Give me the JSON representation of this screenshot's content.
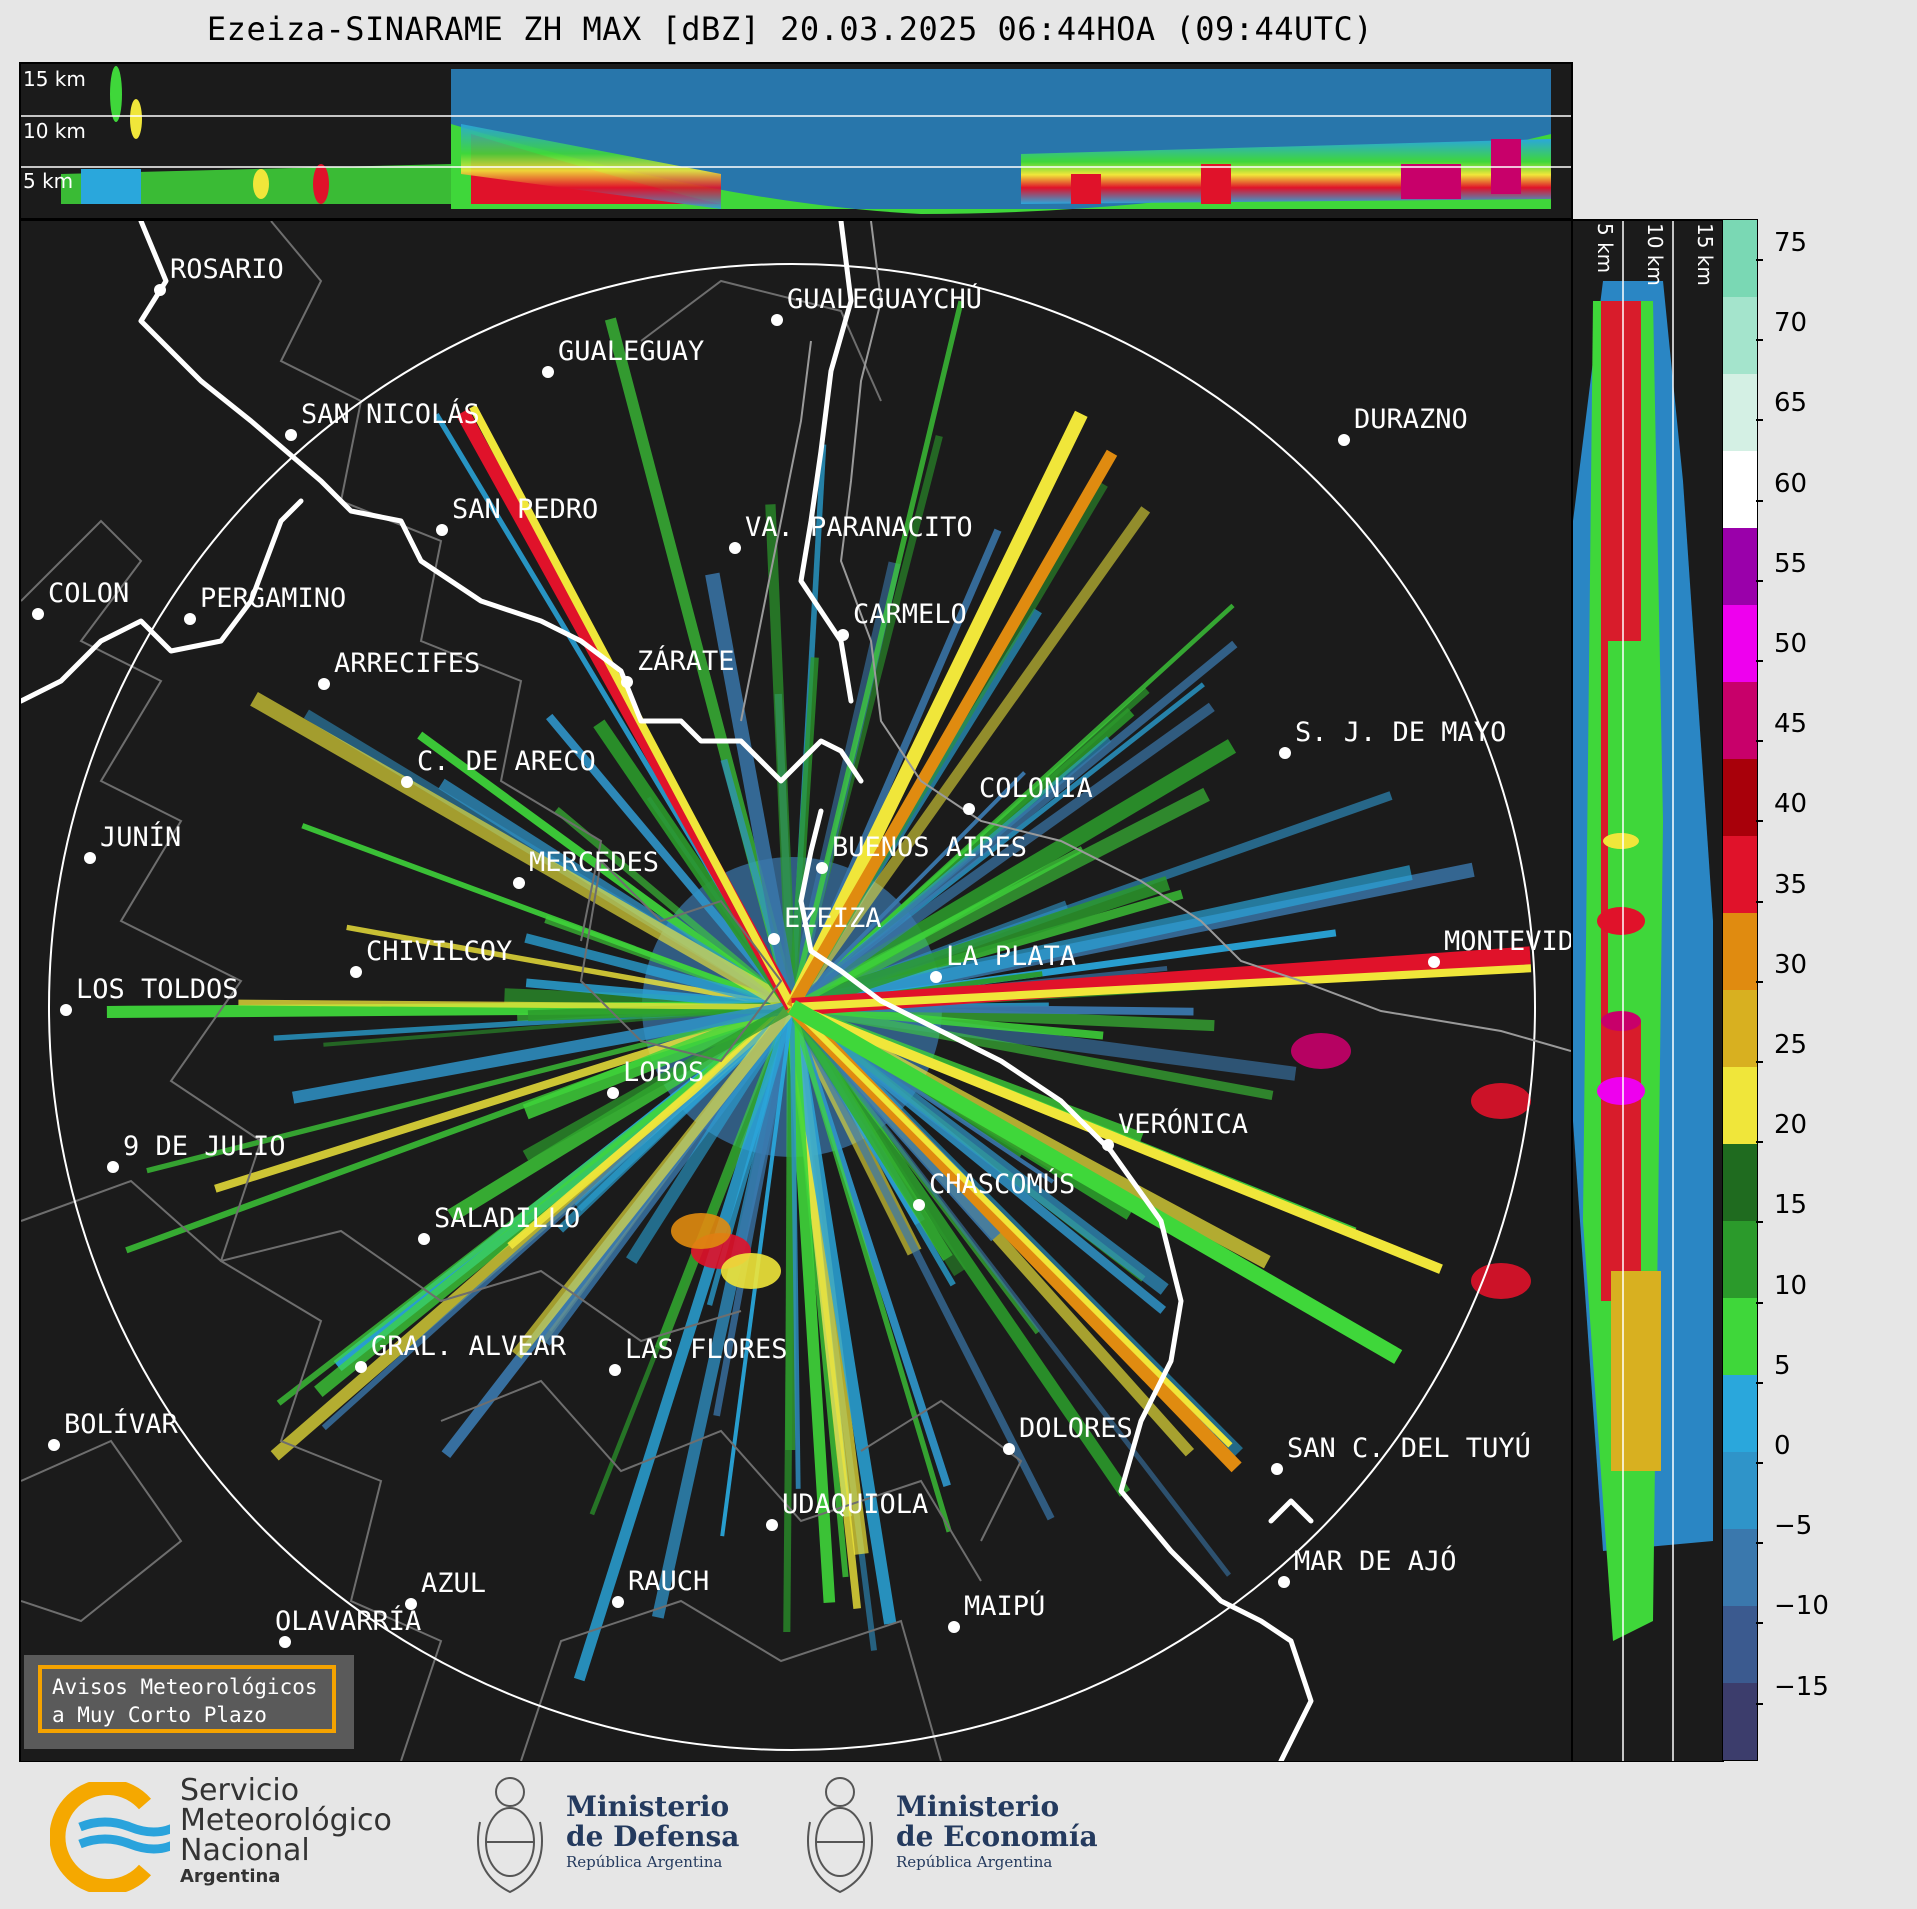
{
  "title": "Ezeiza-SINARAME ZH MAX [dBZ] 20.03.2025 06:44HOA (09:44UTC)",
  "altitudes": [
    "15 km",
    "10 km",
    "5 km"
  ],
  "cities": [
    {
      "name": "ROSARIO"
    },
    {
      "name": "GUALEGUAYCHÚ"
    },
    {
      "name": "GUALEGUAY"
    },
    {
      "name": "SAN NICOLÁS"
    },
    {
      "name": "DURAZNO"
    },
    {
      "name": "SAN PEDRO"
    },
    {
      "name": "VA. PARANACITO"
    },
    {
      "name": "COLON"
    },
    {
      "name": "PERGAMINO"
    },
    {
      "name": "CARMELO"
    },
    {
      "name": "ARRECIFES"
    },
    {
      "name": "ZÁRATE"
    },
    {
      "name": "S. J. DE MAYO"
    },
    {
      "name": "C. DE ARECO"
    },
    {
      "name": "COLONIA"
    },
    {
      "name": "JUNÍN"
    },
    {
      "name": "BUENOS AIRES"
    },
    {
      "name": "MERCEDES"
    },
    {
      "name": "EZEIZA"
    },
    {
      "name": "MONTEVIDEO"
    },
    {
      "name": "CHIVILCOY"
    },
    {
      "name": "LA PLATA"
    },
    {
      "name": "LOS TOLDOS"
    },
    {
      "name": "LOBOS"
    },
    {
      "name": "VERÓNICA"
    },
    {
      "name": "9 DE JULIO"
    },
    {
      "name": "CHASCOMÚS"
    },
    {
      "name": "SALADILLO"
    },
    {
      "name": "GRAL. ALVEAR"
    },
    {
      "name": "LAS FLORES"
    },
    {
      "name": "BOLÍVAR"
    },
    {
      "name": "DOLORES"
    },
    {
      "name": "SAN C. DEL TUYÚ"
    },
    {
      "name": "UDAQUIOLA"
    },
    {
      "name": "MAR DE AJÓ"
    },
    {
      "name": "RAUCH"
    },
    {
      "name": "AZUL"
    },
    {
      "name": "OLAVARRÍA"
    },
    {
      "name": "MAIPÚ"
    }
  ],
  "colorbar": {
    "ticks": [
      "75",
      "70",
      "65",
      "60",
      "55",
      "50",
      "45",
      "40",
      "35",
      "30",
      "25",
      "20",
      "15",
      "10",
      "5",
      "0",
      "−5",
      "−10",
      "−15"
    ],
    "colors": {
      "c1": "#3c3d6c",
      "c2": "#3b5a8f",
      "c3": "#3a78ad",
      "c4": "#2f94c9",
      "c5": "#2aa7dc",
      "c6": "#3fd73a",
      "c7": "#2b9a2b",
      "c8": "#1f6b1f",
      "c9": "#f0e63a",
      "c10": "#d8b020",
      "c11": "#e08b10",
      "c12": "#e0122a",
      "c13": "#a8000a",
      "c14": "#c8006a",
      "c15": "#ee00ee",
      "c16": "#9a00aa",
      "c17": "#ffffff",
      "c18": "#d4f0e4",
      "c19": "#a4e4cc",
      "c20": "#7ad8b4"
    }
  },
  "avisos": {
    "line1": "Avisos Meteorológicos",
    "line2": "a Muy Corto Plazo"
  },
  "footer": {
    "smn_line1": "Servicio",
    "smn_line2": "Meteorológico",
    "smn_line3": "Nacional",
    "smn_line4": "Argentina",
    "defensa_line1": "Ministerio",
    "defensa_line2": "de Defensa",
    "defensa_line3": "República Argentina",
    "economia_line1": "Ministerio",
    "economia_line2": "de Economía",
    "economia_line3": "República Argentina"
  }
}
